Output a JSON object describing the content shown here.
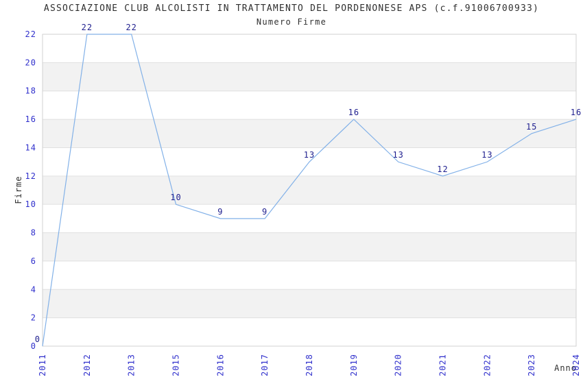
{
  "chart_data": {
    "type": "line",
    "title": "ASSOCIAZIONE CLUB ALCOLISTI IN TRATTAMENTO DEL PORDENONESE APS (c.f.91006700933)",
    "subtitle": "Numero Firme",
    "xlabel": "Anno",
    "ylabel": "Firme",
    "categories": [
      "2011",
      "2012",
      "2013",
      "2015",
      "2016",
      "2017",
      "2018",
      "2019",
      "2020",
      "2021",
      "2022",
      "2023",
      "2024"
    ],
    "values": [
      0,
      22,
      22,
      10,
      9,
      9,
      13,
      16,
      13,
      12,
      13,
      15,
      16
    ],
    "data_labels": [
      0,
      22,
      22,
      10,
      9,
      9,
      13,
      16,
      13,
      12,
      13,
      15,
      16
    ],
    "ylim": [
      0,
      22
    ],
    "ytick_step": 2,
    "yticks": [
      0,
      2,
      4,
      6,
      8,
      10,
      12,
      14,
      16,
      18,
      20,
      22
    ],
    "grid": true,
    "legend": "none",
    "layout_hints": {
      "x_tick_rotation": -90,
      "alternating_bands": true,
      "band_ranges": [
        [
          2,
          4
        ],
        [
          6,
          8
        ],
        [
          10,
          12
        ],
        [
          14,
          16
        ],
        [
          18,
          20
        ]
      ]
    },
    "colors": {
      "line": "#82b1e8",
      "tick_labels": "#3030cc",
      "data_labels": "#1e1e8e",
      "band": "#f2f2f2",
      "gridline": "#e0e0e0",
      "border": "#d0d0d0",
      "text": "#2f2f2f",
      "background": "#ffffff"
    }
  }
}
